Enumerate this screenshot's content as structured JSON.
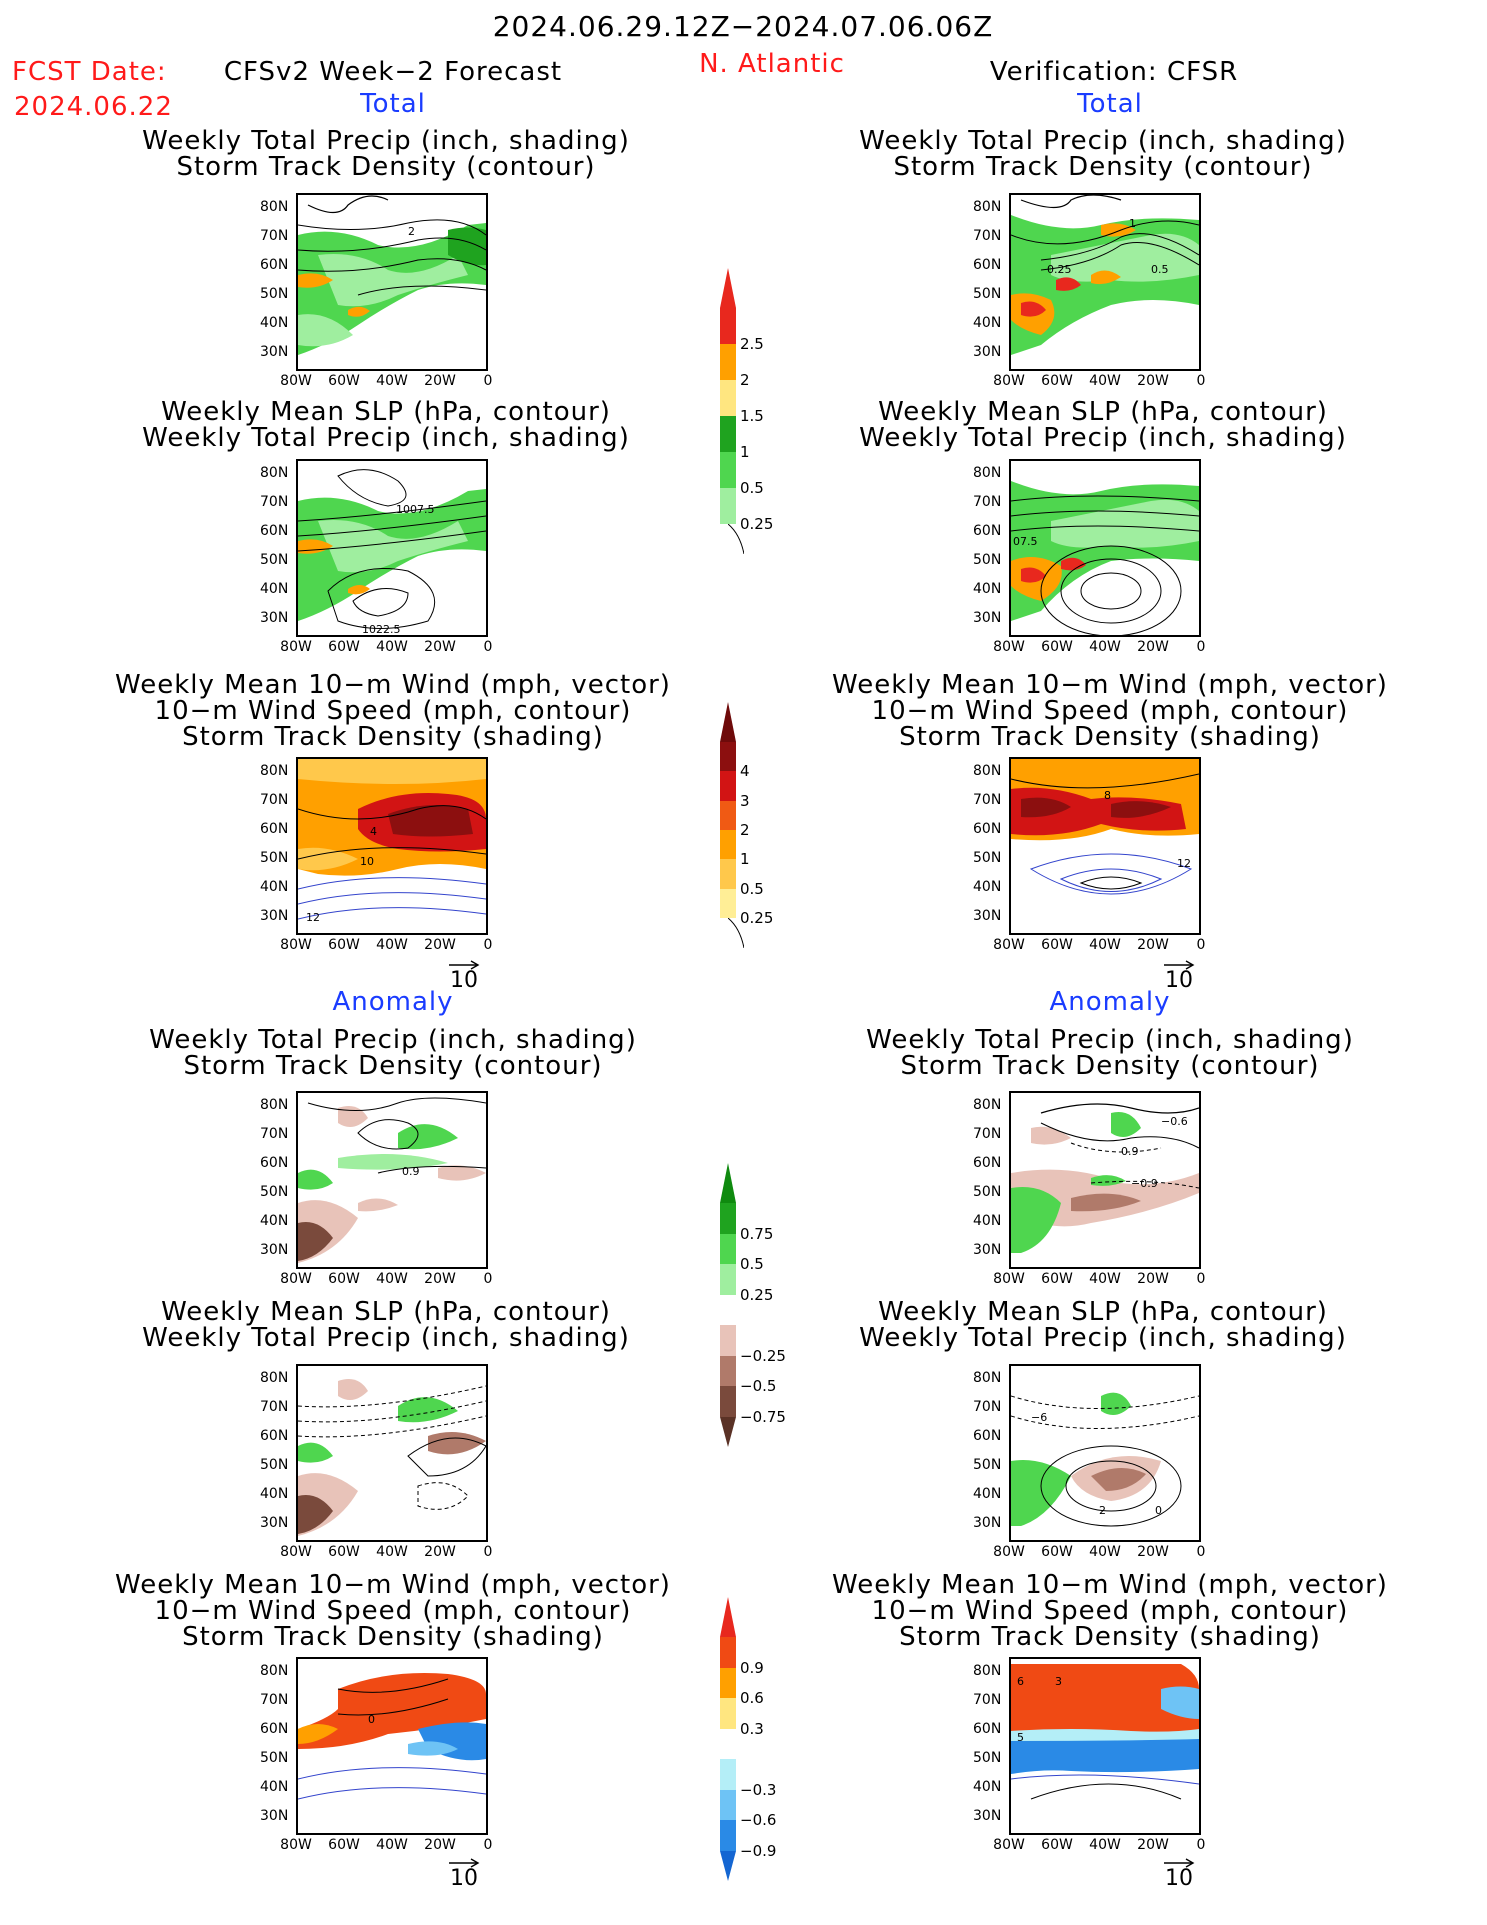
{
  "header": {
    "period": "2024.06.29.12Z−2024.07.06.06Z",
    "fcst_label": "FCST Date:",
    "fcst_date": "2024.06.22",
    "left_title": "CFSv2 Week−2 Forecast",
    "region": "N. Atlantic",
    "right_title": "Verification: CFSR"
  },
  "sections": {
    "total": "Total",
    "anomaly": "Anomaly"
  },
  "titles": {
    "precip_storm": [
      "Weekly Total Precip (inch, shading)",
      "Storm Track Density (contour)"
    ],
    "slp_precip": [
      "Weekly Mean SLP (hPa, contour)",
      "Weekly Total Precip (inch, shading)"
    ],
    "wind": [
      "Weekly Mean 10−m Wind (mph, vector)",
      "10−m Wind Speed (mph, contour)",
      "Storm Track Density (shading)"
    ]
  },
  "axes": {
    "lat_ticks": [
      "80N",
      "70N",
      "60N",
      "50N",
      "40N",
      "30N"
    ],
    "lon_ticks": [
      "80W",
      "60W",
      "40W",
      "20W",
      "0"
    ]
  },
  "vector_ref": "10",
  "map_labels": {
    "fcst_total_precip": "2",
    "verif_total_precip": [
      "1",
      "0.25",
      "0.5"
    ],
    "fcst_total_slp": [
      "1007.5",
      "1022.5"
    ],
    "verif_total_slp": "07.5",
    "fcst_total_wind": [
      "4",
      "10",
      "12"
    ],
    "verif_total_wind": [
      "8",
      "12"
    ],
    "fcst_anom_precip": "0.9",
    "verif_anom_precip": [
      "−0.6",
      "0.9",
      "−0.9"
    ],
    "verif_anom_slp": [
      "−6",
      "2",
      "0"
    ],
    "fcst_anom_wind": "0",
    "verif_anom_wind": [
      "6",
      "3",
      "5"
    ]
  },
  "colorbars": {
    "precip_total": {
      "labels": [
        "2.5",
        "2",
        "1.5",
        "1",
        "0.5",
        "0.25"
      ],
      "colors": [
        "#e8281e",
        "#ffa000",
        "#ffe680",
        "#1fa31f",
        "#4fd64f",
        "#9fee9f"
      ]
    },
    "storm_total": {
      "labels": [
        "4",
        "3",
        "2",
        "1",
        "0.5",
        "0.25"
      ],
      "colors": [
        "#8c0f0f",
        "#d21414",
        "#f05a14",
        "#ffa000",
        "#ffc84b",
        "#ffee96"
      ],
      "top_color": "#6e0a0a"
    },
    "precip_anom": {
      "labels": [
        "0.75",
        "0.5",
        "0.25",
        "−0.25",
        "−0.5",
        "−0.75"
      ],
      "colors": [
        "#1fa31f",
        "#4fd64f",
        "#9fee9f",
        "#ffffff",
        "#e8c3b9",
        "#b07a6a",
        "#7a4a3c"
      ],
      "top_color": "#0f8a0f",
      "bottom_color": "#5a3226"
    },
    "storm_anom": {
      "labels": [
        "0.9",
        "0.6",
        "0.3",
        "−0.3",
        "−0.6",
        "−0.9"
      ],
      "colors": [
        "#f04a14",
        "#ffa000",
        "#ffe680",
        "#ffffff",
        "#b4eef7",
        "#6ec3f5",
        "#2a8ae6"
      ],
      "top_color": "#e8281e",
      "bottom_color": "#1466d2"
    }
  }
}
